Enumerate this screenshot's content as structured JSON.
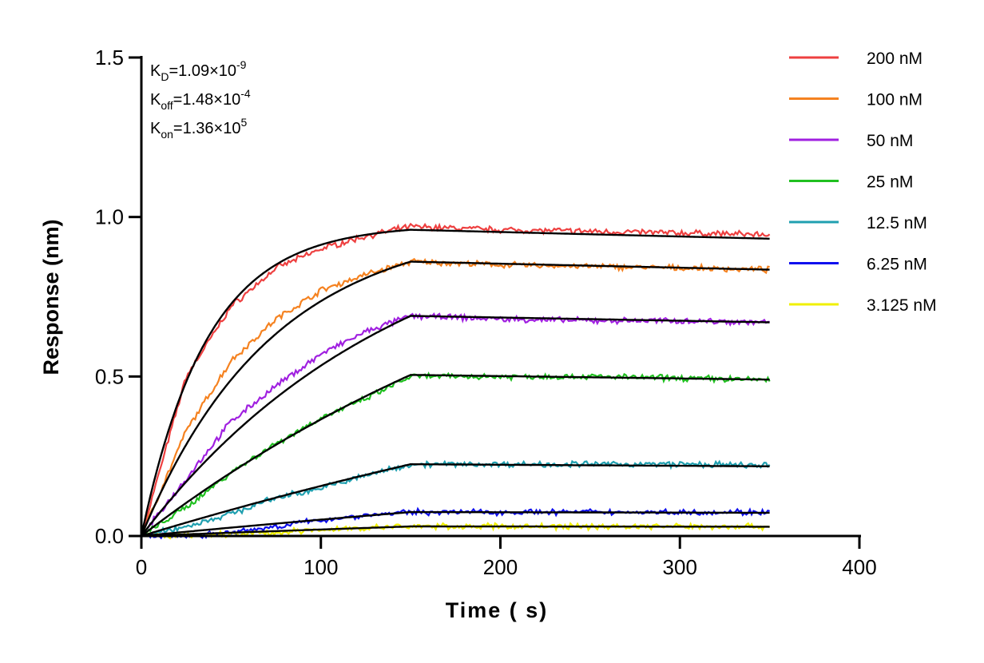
{
  "chart_data": {
    "type": "line",
    "title": "",
    "xlabel": "Time ( s)",
    "ylabel": "Response (nm)",
    "xlim": [
      0,
      400
    ],
    "ylim": [
      0,
      1.5
    ],
    "xticks": [
      "0",
      "100",
      "200",
      "300",
      "400"
    ],
    "yticks": [
      "0.0",
      "0.5",
      "1.0",
      "1.5"
    ],
    "grid": false,
    "legend_position": "right",
    "annotations": [
      {
        "base": "K",
        "sub": "D",
        "text": "=1.09×10",
        "sup": "-9"
      },
      {
        "base": "K",
        "sub": "off",
        "text": "=1.48×10",
        "sup": "-4"
      },
      {
        "base": "K",
        "sub": "on",
        "text": "=1.36×10",
        "sup": "5"
      }
    ],
    "fit": {
      "kon": 136000,
      "koff": 0.000148,
      "association_end": 150,
      "dissociation_end": 350,
      "color": "#000000"
    },
    "x": [
      0,
      25,
      50,
      75,
      100,
      125,
      150,
      200,
      250,
      300,
      350
    ],
    "series": [
      {
        "name": "200 nM",
        "conc_nM": 200,
        "color": "#ee4040",
        "fit_plateau": 0.96,
        "values": [
          0,
          0.5,
          0.72,
          0.84,
          0.9,
          0.94,
          0.97,
          0.96,
          0.955,
          0.95,
          0.945
        ]
      },
      {
        "name": "100 nM",
        "conc_nM": 100,
        "color": "#f58220",
        "fit_plateau": 0.86,
        "values": [
          0,
          0.33,
          0.55,
          0.68,
          0.77,
          0.82,
          0.86,
          0.85,
          0.845,
          0.84,
          0.835
        ]
      },
      {
        "name": "50 nM",
        "conc_nM": 50,
        "color": "#a020e0",
        "fit_plateau": 0.69,
        "values": [
          0,
          0.18,
          0.36,
          0.47,
          0.57,
          0.64,
          0.69,
          0.68,
          0.675,
          0.675,
          0.67
        ]
      },
      {
        "name": "25 nM",
        "conc_nM": 25,
        "color": "#20c020",
        "fit_plateau": 0.505,
        "values": [
          0,
          0.09,
          0.2,
          0.29,
          0.37,
          0.43,
          0.5,
          0.5,
          0.5,
          0.495,
          0.49
        ]
      },
      {
        "name": "12.5 nM",
        "conc_nM": 12.5,
        "color": "#20a0b0",
        "fit_plateau": 0.225,
        "values": [
          0,
          0.03,
          0.07,
          0.12,
          0.15,
          0.19,
          0.225,
          0.225,
          0.225,
          0.225,
          0.22
        ]
      },
      {
        "name": "6.25 nM",
        "conc_nM": 6.25,
        "color": "#1010ee",
        "fit_plateau": 0.075,
        "values": [
          0,
          0.0,
          0.01,
          0.03,
          0.05,
          0.065,
          0.075,
          0.075,
          0.075,
          0.075,
          0.075
        ]
      },
      {
        "name": "3.125 nM",
        "conc_nM": 3.125,
        "color": "#f0f000",
        "fit_plateau": 0.03,
        "values": [
          0,
          0,
          0.005,
          0.01,
          0.02,
          0.025,
          0.03,
          0.03,
          0.03,
          0.03,
          0.03
        ]
      }
    ]
  }
}
